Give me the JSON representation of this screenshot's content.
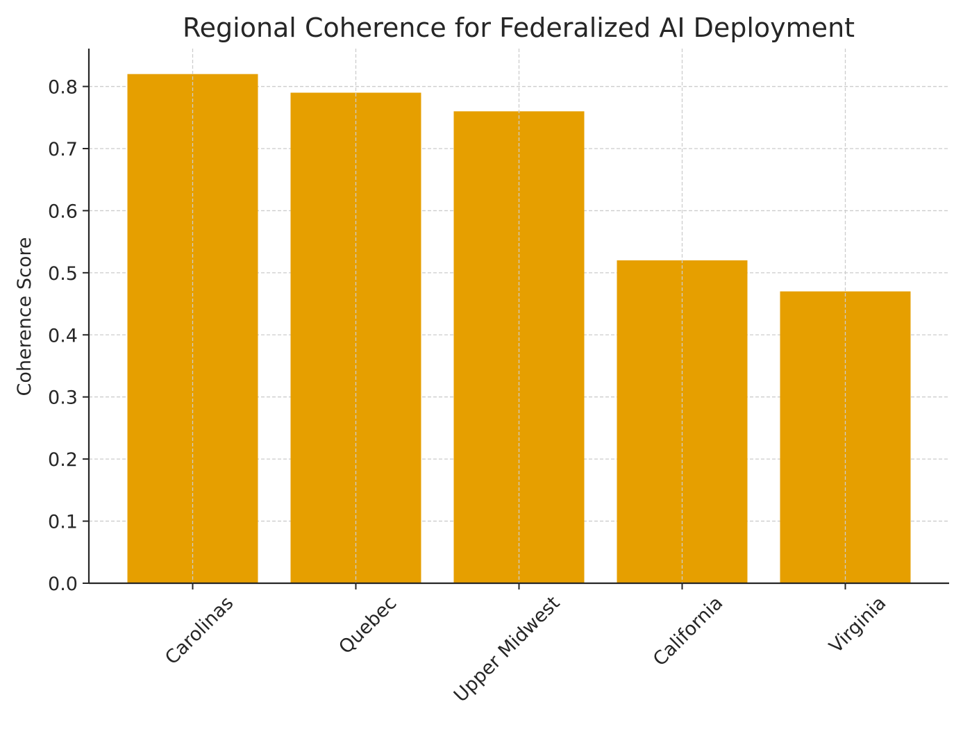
{
  "chart_data": {
    "type": "bar",
    "title": "Regional Coherence for Federalized AI Deployment",
    "xlabel": "",
    "ylabel": "Coherence Score",
    "categories": [
      "Carolinas",
      "Quebec",
      "Upper Midwest",
      "California",
      "Virginia"
    ],
    "values": [
      0.82,
      0.79,
      0.76,
      0.52,
      0.47
    ],
    "ylim": [
      0,
      0.861
    ],
    "yticks": [
      "0.0",
      "0.1",
      "0.2",
      "0.3",
      "0.4",
      "0.5",
      "0.6",
      "0.7",
      "0.8"
    ],
    "grid": true,
    "bar_color": "#e69f00",
    "grid_color": "#cccccc",
    "axis_color": "#262626"
  }
}
